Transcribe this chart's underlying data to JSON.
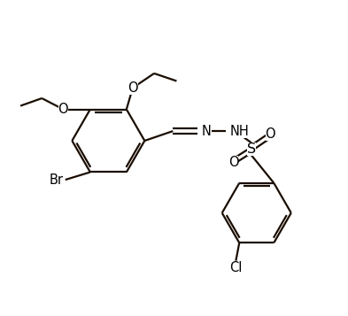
{
  "background_color": "#ffffff",
  "bond_color": "#1a0d00",
  "text_color": "#000000",
  "label_fontsize": 10.5,
  "line_width": 1.6,
  "fig_width": 3.93,
  "fig_height": 3.57,
  "dpi": 100,
  "xlim": [
    0,
    10
  ],
  "ylim": [
    0,
    9
  ]
}
